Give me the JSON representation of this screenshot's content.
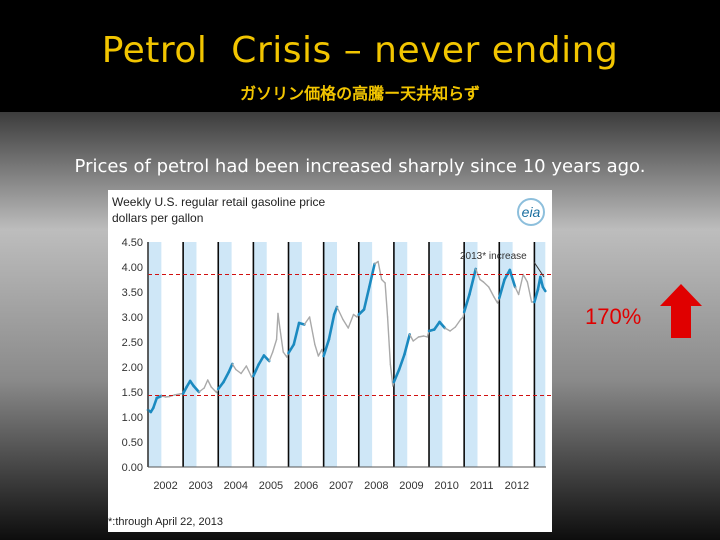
{
  "slide": {
    "title": "Petrol  Crisis – never ending",
    "subtitle": "ガソリン価格の高騰ー天井知らず",
    "caption": "Prices of petrol had been increased sharply since 10 years ago.",
    "percent_label": "170%",
    "accent_color": "#f2c500",
    "arrow_color": "#e00000",
    "arrow_icon": "up-arrow-icon"
  },
  "chart_data": {
    "type": "line",
    "title": "Weekly U.S. regular retail gasoline price",
    "ylabel": "dollars per gallon",
    "logo": "eia",
    "annotation": "2013* increase",
    "footnote": "*:through April 22, 2013",
    "ylim": [
      0,
      4.5
    ],
    "xlim": [
      2002,
      2013.33
    ],
    "yticks": [
      "0.00",
      "0.50",
      "1.00",
      "1.50",
      "2.00",
      "2.50",
      "3.00",
      "3.50",
      "4.00",
      "4.50"
    ],
    "xticks": [
      "2002",
      "2003",
      "2004",
      "2005",
      "2006",
      "2007",
      "2008",
      "2009",
      "2010",
      "2011",
      "2012"
    ],
    "reference_lines": [
      1.43,
      3.85
    ],
    "highlight_color": "#cfe7f7",
    "highlight_line_color": "#1b8ac0",
    "other_line_color": "#a9a9a9",
    "reference_line_color": "#d01010",
    "highlight_periods": [
      [
        2002.0,
        2002.38
      ],
      [
        2003.0,
        2003.38
      ],
      [
        2004.0,
        2004.38
      ],
      [
        2005.0,
        2005.38
      ],
      [
        2006.0,
        2006.38
      ],
      [
        2007.0,
        2007.38
      ],
      [
        2008.0,
        2008.38
      ],
      [
        2009.0,
        2009.38
      ],
      [
        2010.0,
        2010.38
      ],
      [
        2011.0,
        2011.38
      ],
      [
        2012.0,
        2012.38
      ],
      [
        2013.0,
        2013.31
      ]
    ],
    "series": [
      {
        "values": [
          [
            2002.0,
            1.14
          ],
          [
            2002.08,
            1.1
          ],
          [
            2002.15,
            1.18
          ],
          [
            2002.25,
            1.38
          ],
          [
            2002.38,
            1.42
          ],
          [
            2002.5,
            1.4
          ],
          [
            2002.62,
            1.41
          ],
          [
            2002.75,
            1.44
          ],
          [
            2002.9,
            1.46
          ],
          [
            2003.0,
            1.47
          ],
          [
            2003.1,
            1.6
          ],
          [
            2003.2,
            1.72
          ],
          [
            2003.3,
            1.62
          ],
          [
            2003.45,
            1.5
          ],
          [
            2003.6,
            1.58
          ],
          [
            2003.7,
            1.74
          ],
          [
            2003.8,
            1.6
          ],
          [
            2003.95,
            1.49
          ],
          [
            2004.0,
            1.56
          ],
          [
            2004.15,
            1.7
          ],
          [
            2004.3,
            1.9
          ],
          [
            2004.4,
            2.06
          ],
          [
            2004.5,
            1.95
          ],
          [
            2004.65,
            1.87
          ],
          [
            2004.8,
            2.02
          ],
          [
            2004.95,
            1.8
          ],
          [
            2005.0,
            1.82
          ],
          [
            2005.15,
            2.05
          ],
          [
            2005.3,
            2.23
          ],
          [
            2005.45,
            2.12
          ],
          [
            2005.55,
            2.3
          ],
          [
            2005.66,
            2.55
          ],
          [
            2005.7,
            3.07
          ],
          [
            2005.76,
            2.75
          ],
          [
            2005.85,
            2.3
          ],
          [
            2005.95,
            2.2
          ],
          [
            2006.0,
            2.28
          ],
          [
            2006.15,
            2.45
          ],
          [
            2006.3,
            2.88
          ],
          [
            2006.45,
            2.85
          ],
          [
            2006.6,
            3.0
          ],
          [
            2006.75,
            2.45
          ],
          [
            2006.85,
            2.22
          ],
          [
            2006.95,
            2.35
          ],
          [
            2007.0,
            2.22
          ],
          [
            2007.15,
            2.55
          ],
          [
            2007.3,
            3.05
          ],
          [
            2007.38,
            3.2
          ],
          [
            2007.55,
            2.95
          ],
          [
            2007.7,
            2.78
          ],
          [
            2007.85,
            3.05
          ],
          [
            2007.95,
            3.0
          ],
          [
            2008.0,
            3.05
          ],
          [
            2008.15,
            3.15
          ],
          [
            2008.3,
            3.6
          ],
          [
            2008.45,
            4.06
          ],
          [
            2008.55,
            4.11
          ],
          [
            2008.65,
            3.75
          ],
          [
            2008.75,
            3.68
          ],
          [
            2008.82,
            3.0
          ],
          [
            2008.9,
            2.05
          ],
          [
            2008.97,
            1.62
          ],
          [
            2009.0,
            1.7
          ],
          [
            2009.15,
            1.95
          ],
          [
            2009.3,
            2.25
          ],
          [
            2009.45,
            2.65
          ],
          [
            2009.55,
            2.52
          ],
          [
            2009.7,
            2.6
          ],
          [
            2009.85,
            2.62
          ],
          [
            2009.95,
            2.6
          ],
          [
            2010.0,
            2.72
          ],
          [
            2010.15,
            2.75
          ],
          [
            2010.3,
            2.9
          ],
          [
            2010.45,
            2.78
          ],
          [
            2010.6,
            2.72
          ],
          [
            2010.75,
            2.8
          ],
          [
            2010.9,
            2.95
          ],
          [
            2010.97,
            3.0
          ],
          [
            2011.0,
            3.1
          ],
          [
            2011.15,
            3.45
          ],
          [
            2011.33,
            3.96
          ],
          [
            2011.45,
            3.75
          ],
          [
            2011.55,
            3.7
          ],
          [
            2011.7,
            3.6
          ],
          [
            2011.85,
            3.4
          ],
          [
            2011.95,
            3.28
          ],
          [
            2012.0,
            3.38
          ],
          [
            2012.15,
            3.75
          ],
          [
            2012.3,
            3.94
          ],
          [
            2012.45,
            3.6
          ],
          [
            2012.55,
            3.45
          ],
          [
            2012.68,
            3.85
          ],
          [
            2012.8,
            3.7
          ],
          [
            2012.92,
            3.3
          ],
          [
            2012.97,
            3.3
          ],
          [
            2013.0,
            3.3
          ],
          [
            2013.1,
            3.55
          ],
          [
            2013.17,
            3.8
          ],
          [
            2013.24,
            3.6
          ],
          [
            2013.31,
            3.52
          ]
        ]
      }
    ]
  }
}
